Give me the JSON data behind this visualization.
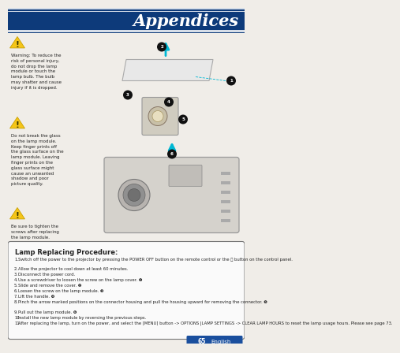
{
  "title": "Appendices",
  "title_bg": "#0d3a7a",
  "title_text_color": "#ffffff",
  "bg_color": "#f0ede8",
  "footer_bg": "#1a4f9e",
  "footer_page": "65",
  "footer_label": "English",
  "footer_text_color": "#ffffff",
  "warn1_text": "Warning: To reduce the\nrisk of personal injury,\ndo not drop the lamp\nmodule or touch the\nlamp bulb. The bulb\nmay shatter and cause\ninjury if it is dropped.",
  "warn2_text": "Do not break the glass\non the lamp module.\nKeep finger prints off\nthe glass surface on the\nlamp module. Leaving\nfinger prints on the\nglass surface might\ncause an unwanted\nshadow and poor\npicture quality.",
  "warn3_text": "Be sure to tighten the\nscrews after replacing\nthe lamp module.",
  "box_title": "Lamp Replacing Procedure:",
  "box_steps": [
    "Switch off the power to the projector by pressing the POWER OFF button on the remote control or the ⓨ button on the control panel.",
    "Allow the projector to cool down at least 60 minutes.",
    "Disconnect the power cord.",
    "Use a screwdriver to loosen the screw on the lamp cover. ❶",
    "Slide and remove the cover. ❷",
    "Loosen the screw on the lamp module. ❸",
    "Lift the handle. ❹",
    "Pinch the arrow marked positions on the connector housing and pull the housing upward for removing the connector. ❺",
    "Pull out the lamp module. ❻",
    "Install the new lamp module by reversing the previous steps.",
    "After replacing the lamp, turn on the power, and select the [MENU] button -> OPTIONS |LAMP SETTINGS -> CLEAR LAMP HOURS to reset the lamp usage hours. Please see page 73."
  ],
  "accent_blue": "#00b8d4",
  "warn_yellow": "#f5c518",
  "warn_yellow_edge": "#c8a000",
  "box_border": "#777777",
  "text_color": "#222222",
  "step_color": "#222222",
  "header_line_color": "#4a90c8",
  "diagram_bg": "#f0ede8"
}
